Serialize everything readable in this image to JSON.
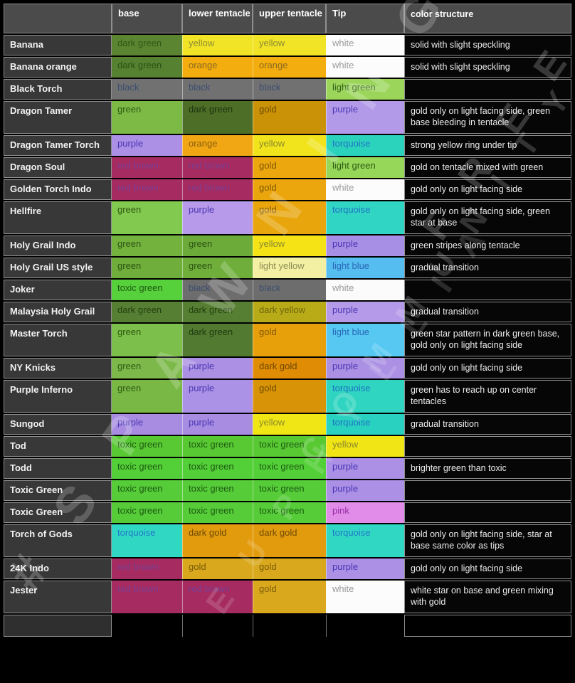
{
  "header": {
    "corner": "",
    "cols": [
      "base",
      "lower tentacle",
      "upper tentacle",
      "Tip",
      "color structure"
    ]
  },
  "rows": [
    {
      "name": "Banana",
      "tall": false,
      "note": "solid with slight speckling",
      "cells": [
        {
          "t": "dark green",
          "bg": "#5c8531",
          "fg": "#2e5715"
        },
        {
          "t": "yellow",
          "bg": "#f1e426",
          "fg": "#8a8a33"
        },
        {
          "t": "yellow",
          "bg": "#f1e426",
          "fg": "#8a8a33"
        },
        {
          "t": "white",
          "bg": "#fcfcfc",
          "fg": "#9a9a9a"
        }
      ]
    },
    {
      "name": "Banana orange",
      "tall": false,
      "note": "solid with slight speckling",
      "cells": [
        {
          "t": "dark green",
          "bg": "#568130",
          "fg": "#2a5014"
        },
        {
          "t": "orange",
          "bg": "#f4ad0e",
          "fg": "#8a6a20"
        },
        {
          "t": "orange",
          "bg": "#f4ad0e",
          "fg": "#8a6a20"
        },
        {
          "t": "white",
          "bg": "#fcfcfc",
          "fg": "#9a9a9a"
        }
      ]
    },
    {
      "name": "Black Torch",
      "tall": false,
      "note": "",
      "cells": [
        {
          "t": "black",
          "bg": "#717171",
          "fg": "#3c4d71"
        },
        {
          "t": "black",
          "bg": "#717171",
          "fg": "#3c4d71"
        },
        {
          "t": "black",
          "bg": "#717171",
          "fg": "#3c4d71"
        },
        {
          "t": "light green",
          "bg": "#9bd65b",
          "fg": "#33601b"
        }
      ]
    },
    {
      "name": "Dragon Tamer",
      "tall": true,
      "note": "gold only on light facing side, green base bleeding in tentacle",
      "cells": [
        {
          "t": "green",
          "bg": "#7cba45",
          "fg": "#2f5a12"
        },
        {
          "t": "dark green",
          "bg": "#4d6e27",
          "fg": "#1c330e"
        },
        {
          "t": "gold",
          "bg": "#c99207",
          "fg": "#6e4a04"
        },
        {
          "t": "purple",
          "bg": "#b29ae9",
          "fg": "#4d38b5"
        }
      ]
    },
    {
      "name": "Dragon Tamer Torch",
      "tall": false,
      "note": "strong yellow ring under tip",
      "cells": [
        {
          "t": "purple",
          "bg": "#ab90e6",
          "fg": "#4a35b2"
        },
        {
          "t": "orange",
          "bg": "#f0a713",
          "fg": "#8a6010"
        },
        {
          "t": "yellow",
          "bg": "#f2e41c",
          "fg": "#8a8a2e"
        },
        {
          "t": "torquoise",
          "bg": "#2bd3bd",
          "fg": "#1f72c4"
        }
      ]
    },
    {
      "name": "Dragon Soul",
      "tall": false,
      "note": "gold on tentacle mixed with green",
      "cells": [
        {
          "t": "red brown",
          "bg": "#a52b60",
          "fg": "#7c3f95"
        },
        {
          "t": "red brown",
          "bg": "#a52b60",
          "fg": "#7c3f95"
        },
        {
          "t": "gold",
          "bg": "#eca70f",
          "fg": "#7c5608"
        },
        {
          "t": "light green",
          "bg": "#96d75a",
          "fg": "#2f5c14"
        }
      ]
    },
    {
      "name": "Golden Torch Indo",
      "tall": false,
      "note": "gold only on light facing side",
      "cells": [
        {
          "t": "red brown",
          "bg": "#a52b60",
          "fg": "#7c3f95"
        },
        {
          "t": "red brown",
          "bg": "#a52b60",
          "fg": "#7c3f95"
        },
        {
          "t": "gold",
          "bg": "#eba60e",
          "fg": "#7c5608"
        },
        {
          "t": "white",
          "bg": "#fcfcfc",
          "fg": "#9a9a9a"
        }
      ]
    },
    {
      "name": "Hellfire",
      "tall": true,
      "note": "gold only on light facing side, green star at base",
      "cells": [
        {
          "t": "green",
          "bg": "#82c94f",
          "fg": "#2f5a12"
        },
        {
          "t": "purple",
          "bg": "#b79ae9",
          "fg": "#4d38b5"
        },
        {
          "t": "gold",
          "bg": "#e8a50c",
          "fg": "#7c5608"
        },
        {
          "t": "torquoise",
          "bg": "#30d6c3",
          "fg": "#1f72c4"
        }
      ]
    },
    {
      "name": "Holy Grail Indo",
      "tall": false,
      "note": "green stripes along tentacle",
      "cells": [
        {
          "t": "green",
          "bg": "#74b23e",
          "fg": "#2c5413"
        },
        {
          "t": "green",
          "bg": "#6cab3a",
          "fg": "#2c5413"
        },
        {
          "t": "yellow",
          "bg": "#f5e316",
          "fg": "#8a8a2e"
        },
        {
          "t": "purple",
          "bg": "#a88fe6",
          "fg": "#4a35b2"
        }
      ]
    },
    {
      "name": "Holy Grail US style",
      "tall": false,
      "note": "gradual transition",
      "cells": [
        {
          "t": "green",
          "bg": "#6fae3a",
          "fg": "#2c5413"
        },
        {
          "t": "green",
          "bg": "#6fae3a",
          "fg": "#2c5413"
        },
        {
          "t": "light yellow",
          "bg": "#f3f0a3",
          "fg": "#8f8f56"
        },
        {
          "t": "light blue",
          "bg": "#55bdf0",
          "fg": "#2a68b8"
        }
      ]
    },
    {
      "name": "Joker",
      "tall": false,
      "note": "",
      "cells": [
        {
          "t": "toxic green",
          "bg": "#56d13c",
          "fg": "#1d5a12"
        },
        {
          "t": "black",
          "bg": "#6d6d6d",
          "fg": "#3c4d71"
        },
        {
          "t": "black",
          "bg": "#6d6d6d",
          "fg": "#3c4d71"
        },
        {
          "t": "white",
          "bg": "#fbfbfb",
          "fg": "#9a9a9a"
        }
      ]
    },
    {
      "name": "Malaysia Holy Grail",
      "tall": false,
      "note": "gradual transition",
      "cells": [
        {
          "t": "dark green",
          "bg": "#567f33",
          "fg": "#24400f"
        },
        {
          "t": "dark green",
          "bg": "#567f33",
          "fg": "#24400f"
        },
        {
          "t": "dark yellow",
          "bg": "#b9ab17",
          "fg": "#6e660e"
        },
        {
          "t": "purple",
          "bg": "#b49ae8",
          "fg": "#4d38b5"
        }
      ]
    },
    {
      "name": "Master Torch",
      "tall": true,
      "note": "green star pattern in dark green base, gold only on light facing side",
      "cells": [
        {
          "t": "green",
          "bg": "#7cbf4a",
          "fg": "#2f5a12"
        },
        {
          "t": "dark green",
          "bg": "#527a30",
          "fg": "#1f3a10"
        },
        {
          "t": "gold",
          "bg": "#e8a00a",
          "fg": "#7c5608"
        },
        {
          "t": "light blue",
          "bg": "#56c8f2",
          "fg": "#2a68b8"
        }
      ]
    },
    {
      "name": "NY Knicks",
      "tall": false,
      "note": "gold only on light facing side",
      "cells": [
        {
          "t": "green",
          "bg": "#7cb84a",
          "fg": "#2f5a12"
        },
        {
          "t": "purple",
          "bg": "#ab90e4",
          "fg": "#4a35b2"
        },
        {
          "t": "dark gold",
          "bg": "#e08d05",
          "fg": "#6e4504"
        },
        {
          "t": "purple",
          "bg": "#ab90e4",
          "fg": "#4a35b2"
        }
      ]
    },
    {
      "name": "Purple Inferno",
      "tall": true,
      "note": "green has to reach up on center tentacles",
      "cells": [
        {
          "t": "green",
          "bg": "#79b845",
          "fg": "#2f5a12"
        },
        {
          "t": "purple",
          "bg": "#ab92e6",
          "fg": "#4a35b2"
        },
        {
          "t": "gold",
          "bg": "#d89306",
          "fg": "#6e4a04"
        },
        {
          "t": "torquoise",
          "bg": "#2fd5c0",
          "fg": "#1f72c4"
        }
      ]
    },
    {
      "name": "Sungod",
      "tall": false,
      "note": "gradual transition",
      "cells": [
        {
          "t": "purple",
          "bg": "#a78ce2",
          "fg": "#4a35b2"
        },
        {
          "t": "purple",
          "bg": "#a78ce2",
          "fg": "#4a35b2"
        },
        {
          "t": "yellow",
          "bg": "#f0e515",
          "fg": "#8a8a2e"
        },
        {
          "t": "torquoise",
          "bg": "#29d1c0",
          "fg": "#1f72c4"
        }
      ]
    },
    {
      "name": "Tod",
      "tall": false,
      "note": "",
      "cells": [
        {
          "t": "toxic green",
          "bg": "#58c933",
          "fg": "#1d5a12"
        },
        {
          "t": "toxic green",
          "bg": "#58c933",
          "fg": "#1d5a12"
        },
        {
          "t": "toxic green",
          "bg": "#58c933",
          "fg": "#1d5a12"
        },
        {
          "t": "yellow",
          "bg": "#f2e515",
          "fg": "#8a8a2e"
        }
      ]
    },
    {
      "name": "Todd",
      "tall": false,
      "note": "brighter green than toxic",
      "cells": [
        {
          "t": "toxic green",
          "bg": "#53cf37",
          "fg": "#1d5a12"
        },
        {
          "t": "toxic green",
          "bg": "#53cf37",
          "fg": "#1d5a12"
        },
        {
          "t": "toxic green",
          "bg": "#53cf37",
          "fg": "#1d5a12"
        },
        {
          "t": "purple",
          "bg": "#ab90e6",
          "fg": "#4a35b2"
        }
      ]
    },
    {
      "name": "Toxic Green",
      "tall": false,
      "note": "",
      "cells": [
        {
          "t": "toxic green",
          "bg": "#55cc38",
          "fg": "#1d5a12"
        },
        {
          "t": "toxic green",
          "bg": "#55cc38",
          "fg": "#1d5a12"
        },
        {
          "t": "toxic green",
          "bg": "#55cc38",
          "fg": "#1d5a12"
        },
        {
          "t": "purple",
          "bg": "#ab90e6",
          "fg": "#4a35b2"
        }
      ]
    },
    {
      "name": "Toxic Green",
      "tall": false,
      "note": "",
      "cells": [
        {
          "t": "toxic green",
          "bg": "#55cc38",
          "fg": "#1d5a12"
        },
        {
          "t": "toxic green",
          "bg": "#55cc38",
          "fg": "#1d5a12"
        },
        {
          "t": "toxic green",
          "bg": "#55cc38",
          "fg": "#1d5a12"
        },
        {
          "t": "pink",
          "bg": "#e18ce8",
          "fg": "#972fa5"
        }
      ]
    },
    {
      "name": "Torch of Gods",
      "tall": true,
      "note": "gold only on light facing side, star at base same color as tips",
      "cells": [
        {
          "t": "torquoise",
          "bg": "#30d8c4",
          "fg": "#2277c9"
        },
        {
          "t": "dark gold",
          "bg": "#e39b0e",
          "fg": "#6e4a06"
        },
        {
          "t": "dark gold",
          "bg": "#e39b0e",
          "fg": "#6e4a06"
        },
        {
          "t": "torquoise",
          "bg": "#30d8c4",
          "fg": "#2277c9"
        }
      ]
    },
    {
      "name": "24K Indo",
      "tall": false,
      "note": "gold only on light facing side",
      "cells": [
        {
          "t": "red brown",
          "bg": "#a52b60",
          "fg": "#7c3f95"
        },
        {
          "t": "gold",
          "bg": "#d9a81c",
          "fg": "#7a5c0a"
        },
        {
          "t": "gold",
          "bg": "#d9a81c",
          "fg": "#7a5c0a"
        },
        {
          "t": "purple",
          "bg": "#ab90e6",
          "fg": "#4a35b2"
        }
      ]
    },
    {
      "name": "Jester",
      "tall": true,
      "note": "white star on base and green mixing with gold",
      "cells": [
        {
          "t": "red brown",
          "bg": "#a52b60",
          "fg": "#7c3f95"
        },
        {
          "t": "red brown",
          "bg": "#a52b60",
          "fg": "#7c3f95"
        },
        {
          "t": "gold",
          "bg": "#d9a81c",
          "fg": "#7a5c0a"
        },
        {
          "t": "white",
          "bg": "#fcfcfc",
          "fg": "#9a9a9a"
        }
      ]
    }
  ],
  "empty_row": {
    "name": "",
    "cells": [
      "",
      "",
      "",
      ""
    ],
    "note": ""
  },
  "watermark": {
    "fragments": [
      "# S P A W N I N G",
      "E U P H Y L L I A",
      "C O M M U N I T Y",
      "F R E E"
    ]
  }
}
